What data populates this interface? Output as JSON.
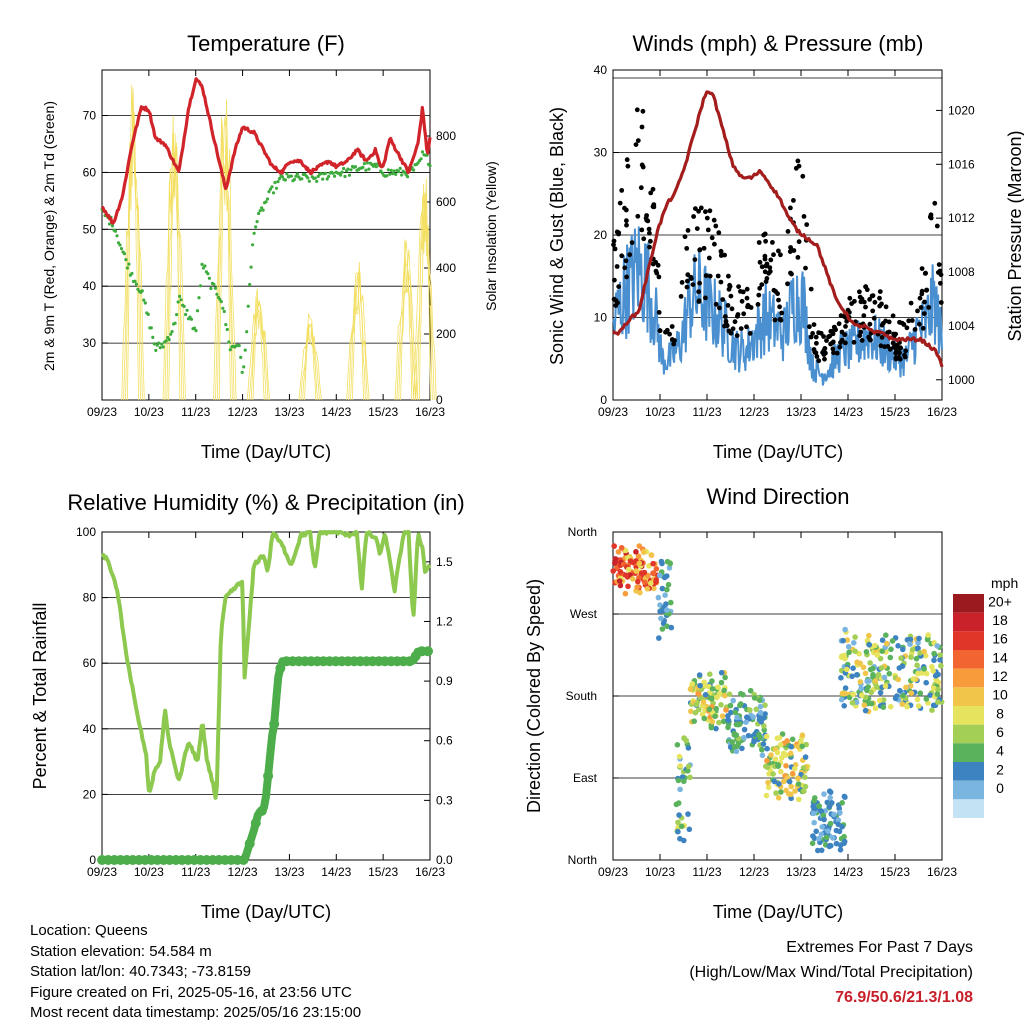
{
  "panels": {
    "temperature": {
      "title": "Temperature (F)",
      "ylabel_left": "2m & 9m T (Red, Orange) & 2m Td (Green)",
      "ylabel_right": "Solar Insolation (Yellow)",
      "xlabel": "Time (Day/UTC)"
    },
    "winds": {
      "title": "Winds (mph) & Pressure (mb)",
      "ylabel_left": "Sonic Wind & Gust (Blue, Black)",
      "ylabel_right": "Station Pressure (Maroon)",
      "xlabel": "Time (Day/UTC)"
    },
    "humidity": {
      "title": "Relative Humidity (%) & Precipitation (in)",
      "ylabel_left": "Percent & Total Rainfall",
      "xlabel": "Time (Day/UTC)"
    },
    "direction": {
      "title": "Wind Direction",
      "ylabel_left": "Direction (Colored By Speed)",
      "xlabel": "Time (Day/UTC)",
      "legend_title": "mph"
    }
  },
  "info": {
    "location": "Location: Queens",
    "elevation": "Station elevation: 54.584 m",
    "latlon": "Station lat/lon: 40.7343; -73.8159",
    "created": "Figure created on Fri, 2025-05-16, at 23:56 UTC",
    "recent": "Most recent data timestamp: 2025/05/16 23:15:00",
    "extremes_title": "Extremes For Past 7 Days",
    "extremes_subtitle": "(High/Low/Max Wind/Total Precipitation)",
    "extremes_values": "76.9/50.6/21.3/1.08"
  },
  "chart_data": [
    {
      "type": "line",
      "title": "Temperature (F)",
      "xlabel": "Time (Day/UTC)",
      "ylabel": "2m & 9m T (Red, Orange) & 2m Td (Green)",
      "ylabel_right": "Solar Insolation (Yellow)",
      "x_ticks": [
        "09/23",
        "10/23",
        "11/23",
        "12/23",
        "13/23",
        "14/23",
        "15/23",
        "16/23"
      ],
      "xlim_days": [
        9.958,
        16.958
      ],
      "ylim": [
        20,
        78
      ],
      "y_ticks": [
        30,
        40,
        50,
        60,
        70
      ],
      "ylim_right": [
        0,
        1000
      ],
      "y_ticks_right": [
        0,
        200,
        400,
        600,
        800
      ],
      "grid": "horizontal",
      "series": [
        {
          "name": "2m T",
          "color": "#d0242a",
          "x": [
            9.96,
            10.2,
            10.4,
            10.6,
            10.8,
            10.96,
            11.1,
            11.3,
            11.6,
            11.8,
            11.96,
            12.1,
            12.4,
            12.6,
            12.8,
            12.96,
            13.2,
            13.4,
            13.6,
            13.8,
            13.96,
            14.2,
            14.4,
            14.6,
            14.8,
            14.96,
            15.2,
            15.4,
            15.6,
            15.8,
            15.9,
            15.96,
            16.1,
            16.3,
            16.5,
            16.7,
            16.8,
            16.9,
            16.958
          ],
          "y": [
            54,
            51,
            56,
            65,
            71.5,
            71,
            66,
            65,
            60,
            71,
            76.5,
            75,
            64,
            57,
            64,
            68,
            67,
            64,
            61,
            60,
            62,
            62,
            60,
            61,
            62,
            61,
            62,
            64,
            62,
            64,
            61,
            61,
            66,
            63,
            60,
            65,
            71.5,
            63,
            66
          ]
        },
        {
          "name": "2m Td",
          "color": "#3dab3d",
          "x": [
            9.96,
            10.2,
            10.4,
            10.6,
            10.8,
            10.96,
            11.1,
            11.3,
            11.5,
            11.6,
            11.7,
            11.8,
            11.96,
            12.1,
            12.3,
            12.5,
            12.7,
            12.9,
            12.96,
            13.2,
            13.4,
            13.6,
            13.8,
            14.0,
            14.3,
            14.6,
            14.9,
            15.2,
            15.5,
            15.8,
            16.0,
            16.3,
            16.5,
            16.7,
            16.8,
            16.958
          ],
          "y": [
            53,
            51,
            46,
            42,
            39,
            34,
            29,
            30,
            33,
            38,
            36,
            35,
            32,
            44,
            40,
            38,
            29,
            30,
            23,
            50,
            54,
            57,
            59,
            59,
            59,
            59,
            60,
            60,
            61,
            61,
            60,
            60,
            60,
            61,
            63,
            62
          ]
        },
        {
          "name": "Solar Insolation",
          "color": "#f3df62",
          "axis": "right",
          "peaks_x": [
            10.62,
            11.5,
            12.58,
            13.3,
            14.4,
            15.42,
            16.45,
            16.85
          ],
          "peaks_y": [
            990,
            900,
            980,
            350,
            270,
            430,
            520,
            700
          ]
        }
      ]
    },
    {
      "type": "scatter",
      "title": "Winds (mph) & Pressure (mb)",
      "xlabel": "Time (Day/UTC)",
      "ylabel": "Sonic Wind & Gust (Blue, Black)",
      "ylabel_right": "Station Pressure (Maroon)",
      "x_ticks": [
        "09/23",
        "10/23",
        "11/23",
        "12/23",
        "13/23",
        "14/23",
        "15/23",
        "16/23"
      ],
      "xlim_days": [
        9.958,
        16.958
      ],
      "ylim": [
        0,
        40
      ],
      "y_ticks": [
        0,
        10,
        20,
        30,
        40
      ],
      "ylim_right": [
        998.5,
        1023
      ],
      "y_ticks_right": [
        1000,
        1004,
        1008,
        1012,
        1016,
        1020
      ],
      "grid": "horizontal",
      "series": [
        {
          "name": "Wind",
          "color": "#4a90d0",
          "x": [
            9.96,
            10.2,
            10.5,
            10.7,
            10.9,
            11.0,
            11.2,
            11.4,
            11.6,
            11.8,
            12.0,
            12.2,
            12.4,
            12.6,
            12.8,
            13.0,
            13.2,
            13.4,
            13.6,
            13.8,
            14.0,
            14.2,
            14.4,
            14.6,
            14.8,
            15.0,
            15.2,
            15.4,
            15.6,
            15.8,
            16.0,
            16.2,
            16.4,
            16.6,
            16.8,
            16.958
          ],
          "y": [
            9,
            13,
            16,
            14,
            9,
            5,
            5,
            7,
            12,
            13,
            11,
            10,
            8,
            6,
            6,
            8,
            10,
            9,
            8,
            12,
            12,
            4,
            3,
            4,
            6,
            6,
            7,
            8,
            7,
            6,
            5,
            5,
            8,
            9,
            12,
            7
          ]
        },
        {
          "name": "Gust",
          "color": "#000000",
          "x": [
            9.96,
            10.2,
            10.5,
            10.7,
            10.9,
            11.0,
            11.2,
            11.4,
            11.6,
            11.8,
            12.0,
            12.2,
            12.4,
            12.6,
            12.8,
            13.0,
            13.2,
            13.4,
            13.6,
            13.8,
            14.0,
            14.2,
            14.4,
            14.6,
            14.8,
            15.0,
            15.2,
            15.4,
            15.6,
            15.8,
            16.0,
            16.2,
            16.4,
            16.6,
            16.8,
            16.958
          ],
          "y": [
            14,
            20,
            28,
            25,
            15,
            8,
            8,
            13,
            19,
            17,
            17,
            15,
            12,
            10,
            10,
            14,
            16,
            14,
            12,
            20,
            23,
            8,
            6,
            7,
            9,
            9,
            10,
            10,
            10,
            8,
            7,
            7,
            10,
            13,
            22,
            10
          ]
        },
        {
          "name": "Station Pressure",
          "color": "#a31d1d",
          "axis": "right",
          "x": [
            9.96,
            10.1,
            10.3,
            10.5,
            10.7,
            10.9,
            11.1,
            11.3,
            11.5,
            11.7,
            11.9,
            12.0,
            12.1,
            12.3,
            12.5,
            12.7,
            12.9,
            13.1,
            13.3,
            13.5,
            13.7,
            13.9,
            14.1,
            14.3,
            14.5,
            14.7,
            14.9,
            15.1,
            15.3,
            15.5,
            15.7,
            15.9,
            16.1,
            16.3,
            16.5,
            16.7,
            16.85,
            16.958
          ],
          "y": [
            1003.5,
            1003.5,
            1004.5,
            1005,
            1008,
            1011,
            1013,
            1014,
            1016,
            1018.5,
            1021,
            1021.5,
            1021,
            1018.5,
            1016,
            1015,
            1015,
            1015.5,
            1014.5,
            1013.5,
            1012,
            1011,
            1010.5,
            1010,
            1008,
            1006,
            1005,
            1004,
            1004,
            1003.5,
            1003.5,
            1003,
            1003,
            1003,
            1003,
            1002.5,
            1002,
            1001
          ]
        }
      ]
    },
    {
      "type": "line",
      "title": "Relative Humidity (%) & Precipitation (in)",
      "xlabel": "Time (Day/UTC)",
      "ylabel": "Percent & Total Rainfall",
      "x_ticks": [
        "09/23",
        "10/23",
        "11/23",
        "12/23",
        "13/23",
        "14/23",
        "15/23",
        "16/23"
      ],
      "xlim_days": [
        9.958,
        16.958
      ],
      "ylim": [
        0,
        100
      ],
      "y_ticks": [
        0,
        20,
        40,
        60,
        80,
        100
      ],
      "ylim_right": [
        0,
        1.65
      ],
      "y_ticks_right": [
        0.0,
        0.3,
        0.6,
        0.9,
        1.2,
        1.5
      ],
      "grid": "horizontal",
      "series": [
        {
          "name": "Relative Humidity",
          "color": "#8dc84f",
          "x": [
            9.96,
            10.1,
            10.2,
            10.3,
            10.4,
            10.5,
            10.7,
            10.9,
            10.96,
            11.1,
            11.2,
            11.3,
            11.4,
            11.6,
            11.8,
            12.0,
            12.1,
            12.2,
            12.3,
            12.4,
            12.5,
            12.6,
            12.8,
            12.96,
            13.0,
            13.2,
            13.4,
            13.5,
            13.6,
            13.8,
            14.0,
            14.2,
            14.4,
            14.5,
            14.6,
            14.8,
            15.0,
            15.2,
            15.4,
            15.5,
            15.6,
            15.8,
            15.9,
            16.0,
            16.2,
            16.4,
            16.5,
            16.6,
            16.7,
            16.8,
            16.85,
            16.958
          ],
          "y": [
            93,
            91,
            86,
            81,
            70,
            61,
            45,
            32,
            20,
            28,
            30,
            46,
            35,
            24,
            36,
            30,
            42,
            30,
            25,
            18,
            70,
            80,
            83,
            85,
            55,
            90,
            93,
            88,
            100,
            96,
            90,
            99,
            100,
            88,
            100,
            100,
            100,
            99,
            100,
            82,
            100,
            98,
            93,
            100,
            82,
            100,
            100,
            72,
            100,
            95,
            88,
            90
          ]
        },
        {
          "name": "Total Precipitation",
          "color": "#4cad4a",
          "axis": "right",
          "x": [
            9.96,
            12.0,
            13.0,
            13.2,
            13.3,
            13.4,
            13.45,
            13.6,
            13.65,
            13.7,
            13.8,
            13.9,
            14.0,
            14.5,
            15.0,
            15.5,
            16.0,
            16.6,
            16.7,
            16.958
          ],
          "y": [
            0.0,
            0.0,
            0.0,
            0.15,
            0.24,
            0.25,
            0.3,
            0.65,
            0.7,
            0.9,
            1.0,
            1.0,
            1.0,
            1.0,
            1.0,
            1.0,
            1.0,
            1.0,
            1.05,
            1.05
          ]
        }
      ]
    },
    {
      "type": "scatter",
      "title": "Wind Direction",
      "xlabel": "Time (Day/UTC)",
      "ylabel": "Direction (Colored By Speed)",
      "x_ticks": [
        "09/23",
        "10/23",
        "11/23",
        "12/23",
        "13/23",
        "14/23",
        "15/23",
        "16/23"
      ],
      "xlim_days": [
        9.958,
        16.958
      ],
      "y_categories": [
        "North",
        "East",
        "South",
        "West",
        "North"
      ],
      "ylim_deg": [
        0,
        360
      ],
      "grid": "horizontal",
      "legend": {
        "title": "mph",
        "placement": "right",
        "levels": [
          "20+",
          "18",
          "16",
          "14",
          "12",
          "10",
          "8",
          "6",
          "4",
          "2",
          "0"
        ],
        "colors": [
          "#9b1a1f",
          "#c9222a",
          "#e0362a",
          "#f26430",
          "#f89c3b",
          "#f0c54a",
          "#e6e35e",
          "#a4cf56",
          "#5ab25d",
          "#3d83c1",
          "#7ab5e0",
          "#c3e3f4"
        ]
      },
      "clusters": [
        {
          "x": [
            9.96,
            10.9
          ],
          "dir_deg": [
            290,
            350
          ],
          "speed": "10-20+"
        },
        {
          "x": [
            10.9,
            11.2
          ],
          "dir_deg": [
            230,
            350
          ],
          "speed": "2-6"
        },
        {
          "x": [
            11.3,
            11.6
          ],
          "dir_deg": [
            0,
            150
          ],
          "speed": "2-10"
        },
        {
          "x": [
            11.6,
            12.4
          ],
          "dir_deg": [
            140,
            210
          ],
          "speed": "4-14"
        },
        {
          "x": [
            12.4,
            13.2
          ],
          "dir_deg": [
            110,
            190
          ],
          "speed": "2-8"
        },
        {
          "x": [
            13.2,
            14.1
          ],
          "dir_deg": [
            60,
            150
          ],
          "speed": "4-14"
        },
        {
          "x": [
            14.2,
            14.9
          ],
          "dir_deg": [
            0,
            80
          ],
          "speed": "2-6"
        },
        {
          "x": [
            14.8,
            16.958
          ],
          "dir_deg": [
            150,
            260
          ],
          "speed": "2-12"
        }
      ]
    }
  ]
}
